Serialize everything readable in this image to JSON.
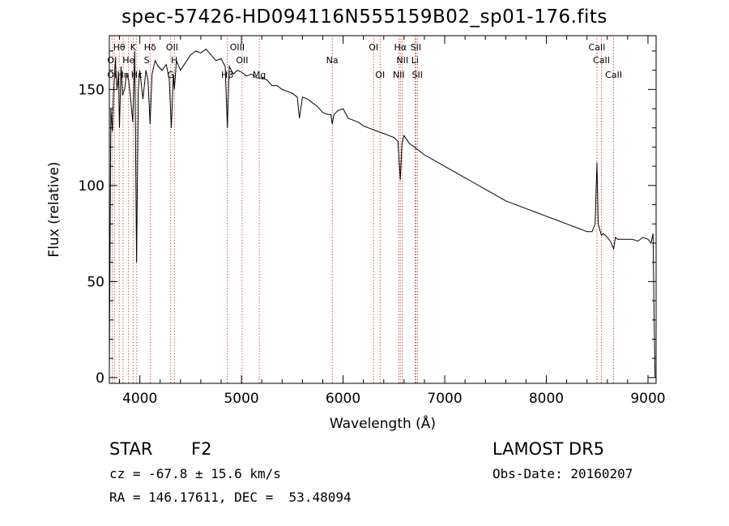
{
  "chart_data": {
    "type": "line",
    "title": "spec-57426-HD094116N555159B02_sp01-176.fits",
    "xlabel": "Wavelength (Å)",
    "ylabel": "Flux (relative)",
    "xlim": [
      3700,
      9080
    ],
    "ylim": [
      -3,
      178
    ],
    "xticks": [
      4000,
      5000,
      6000,
      7000,
      8000,
      9000
    ],
    "yticks": [
      0,
      50,
      100,
      150
    ],
    "grid": false,
    "series": [
      {
        "x": [
          3700,
          3715,
          3730,
          3745,
          3760,
          3775,
          3790,
          3800,
          3815,
          3830,
          3850,
          3870,
          3890,
          3910,
          3930,
          3950,
          3968,
          3985,
          4000,
          4030,
          4060,
          4080,
          4101,
          4120,
          4150,
          4180,
          4220,
          4260,
          4290,
          4310,
          4330,
          4340,
          4360,
          4400,
          4450,
          4500,
          4550,
          4600,
          4650,
          4700,
          4750,
          4800,
          4840,
          4861,
          4880,
          4920,
          4960,
          5000,
          5050,
          5100,
          5150,
          5200,
          5250,
          5300,
          5350,
          5400,
          5450,
          5500,
          5550,
          5570,
          5600,
          5650,
          5700,
          5750,
          5800,
          5850,
          5880,
          5893,
          5910,
          5950,
          6000,
          6050,
          6100,
          6150,
          6200,
          6250,
          6300,
          6350,
          6400,
          6450,
          6500,
          6540,
          6563,
          6580,
          6600,
          6650,
          6700,
          6750,
          6800,
          6900,
          7000,
          7100,
          7200,
          7300,
          7400,
          7500,
          7600,
          7700,
          7800,
          7900,
          8000,
          8100,
          8200,
          8300,
          8400,
          8450,
          8480,
          8498,
          8510,
          8542,
          8560,
          8600,
          8630,
          8662,
          8680,
          8700,
          8750,
          8800,
          8850,
          8900,
          8950,
          9000,
          9030,
          9050,
          9060,
          9070
        ],
        "y": [
          5,
          140,
          128,
          152,
          165,
          150,
          158,
          130,
          162,
          147,
          150,
          158,
          155,
          145,
          133,
          170,
          60,
          150,
          160,
          145,
          160,
          155,
          132,
          158,
          165,
          162,
          160,
          163,
          155,
          130,
          158,
          150,
          165,
          160,
          164,
          168,
          170,
          169,
          171,
          168,
          165,
          166,
          162,
          130,
          162,
          158,
          160,
          159,
          157,
          158,
          156,
          156,
          155,
          152,
          152,
          150,
          149,
          148,
          146,
          135,
          146,
          145,
          143,
          141,
          138,
          137,
          137,
          132,
          137,
          139,
          140,
          135,
          134,
          133,
          131,
          130,
          129,
          128,
          127,
          126,
          125,
          123,
          103,
          122,
          126,
          122,
          120,
          118,
          116,
          113,
          110,
          107,
          104,
          101,
          98,
          95,
          92,
          90,
          88,
          86,
          84,
          82,
          80,
          78,
          76,
          76,
          80,
          112,
          80,
          74,
          75,
          73,
          71,
          67,
          73,
          72,
          72,
          72,
          72,
          71,
          73,
          72,
          70,
          75,
          32,
          0
        ]
      }
    ],
    "annotations": [
      {
        "label": "Hθ",
        "x": 3797,
        "row": 1
      },
      {
        "label": "K",
        "x": 3934,
        "row": 1
      },
      {
        "label": "Hδ",
        "x": 4101,
        "row": 1
      },
      {
        "label": "OII",
        "x": 4317,
        "row": 1
      },
      {
        "label": "OIII",
        "x": 4959,
        "row": 1
      },
      {
        "label": "OI",
        "x": 6300,
        "row": 1
      },
      {
        "label": "Hα",
        "x": 6563,
        "row": 1
      },
      {
        "label": "SII",
        "x": 6716,
        "row": 1
      },
      {
        "label": "CaII",
        "x": 8498,
        "row": 1
      },
      {
        "label": "OI",
        "x": 3727,
        "row": 2
      },
      {
        "label": "He",
        "x": 3889,
        "row": 2
      },
      {
        "label": "S",
        "x": 4068,
        "row": 2
      },
      {
        "label": "H",
        "x": 4340,
        "row": 2
      },
      {
        "label": "OII",
        "x": 5007,
        "row": 2
      },
      {
        "label": "Na",
        "x": 5893,
        "row": 2
      },
      {
        "label": "NII",
        "x": 6583,
        "row": 2
      },
      {
        "label": "Li",
        "x": 6708,
        "row": 2
      },
      {
        "label": "CaII",
        "x": 8542,
        "row": 2
      },
      {
        "label": "OI",
        "x": 3727,
        "row": 3
      },
      {
        "label": "Hη",
        "x": 3835,
        "row": 3
      },
      {
        "label": "Hε",
        "x": 3970,
        "row": 3
      },
      {
        "label": "G",
        "x": 4304,
        "row": 3
      },
      {
        "label": "Hβ",
        "x": 4861,
        "row": 3
      },
      {
        "label": "Mg",
        "x": 5175,
        "row": 3
      },
      {
        "label": "OI",
        "x": 6364,
        "row": 3
      },
      {
        "label": "NII",
        "x": 6548,
        "row": 3
      },
      {
        "label": "SII",
        "x": 6731,
        "row": 3
      },
      {
        "label": "CaII",
        "x": 8662,
        "row": 3
      }
    ],
    "line_markers": [
      3727,
      3750,
      3797,
      3835,
      3889,
      3934,
      3970,
      4101,
      4304,
      4340,
      4861,
      5007,
      5175,
      5893,
      6300,
      6364,
      6548,
      6563,
      6583,
      6708,
      6716,
      6731,
      8498,
      8542,
      8662
    ]
  },
  "info": {
    "obj_class": "STAR",
    "subclass": "F2",
    "cz": "cz = -67.8 ± 15.6 km/s",
    "coords": "RA = 146.17611, DEC =  53.48094",
    "survey": "LAMOST DR5",
    "obs_date": "Obs-Date: 20160207"
  }
}
